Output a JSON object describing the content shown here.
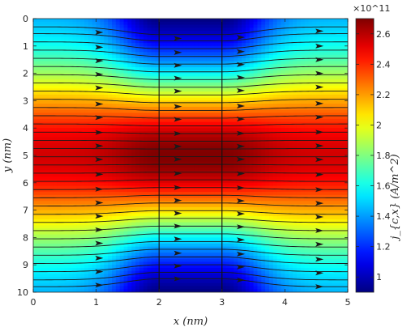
{
  "chart_data": {
    "type": "heatmap",
    "subtype": "current-density field with streamlines",
    "xlabel": "x (nm)",
    "ylabel": "y (nm)",
    "colorbar_label": "j_{c,x} (A/m^2)",
    "colorbar_exponent": "×10^11",
    "xlim": [
      0,
      5
    ],
    "ylim": [
      0,
      10
    ],
    "y_axis_direction": "reversed",
    "x_ticks": [
      "0",
      "1",
      "2",
      "3",
      "4",
      "5"
    ],
    "y_ticks": [
      "0",
      "1",
      "2",
      "3",
      "4",
      "5",
      "6",
      "7",
      "8",
      "9",
      "10"
    ],
    "colorbar_range": [
      0.9,
      2.7
    ],
    "colorbar_ticks": [
      "1",
      "1.2",
      "1.4",
      "1.6",
      "1.8",
      "2",
      "2.2",
      "2.4",
      "2.6"
    ],
    "colormap": "jet",
    "field": {
      "y_peak": 5,
      "value_at_peak_outside": 2.55,
      "value_at_peak_center": 2.7,
      "value_at_edges_outside": 1.45,
      "value_at_edges_center": 0.9,
      "center_region_x": [
        2,
        3
      ]
    },
    "vertical_lines_x": [
      2,
      3
    ],
    "streamline_y_values": [
      0.3,
      0.55,
      0.85,
      1.15,
      1.45,
      1.75,
      2.05,
      2.35,
      2.65,
      2.95,
      3.25,
      3.55,
      3.85,
      4.15,
      4.45,
      4.75,
      5.05,
      5.35,
      5.65,
      5.95,
      6.25,
      6.55,
      6.85,
      7.15,
      7.45,
      7.75,
      8.05,
      8.35,
      8.65,
      8.95,
      9.25,
      9.55,
      9.8
    ],
    "arrow_y_values": [
      0.45,
      1.0,
      1.5,
      2.0,
      2.5,
      3.1,
      3.6,
      4.15,
      4.65,
      5.15,
      5.7,
      6.25,
      6.75,
      7.25,
      7.75,
      8.25,
      8.8,
      9.3,
      9.8
    ],
    "arrow_x_values": [
      1.05,
      2.3,
      3.3,
      4.55
    ]
  }
}
